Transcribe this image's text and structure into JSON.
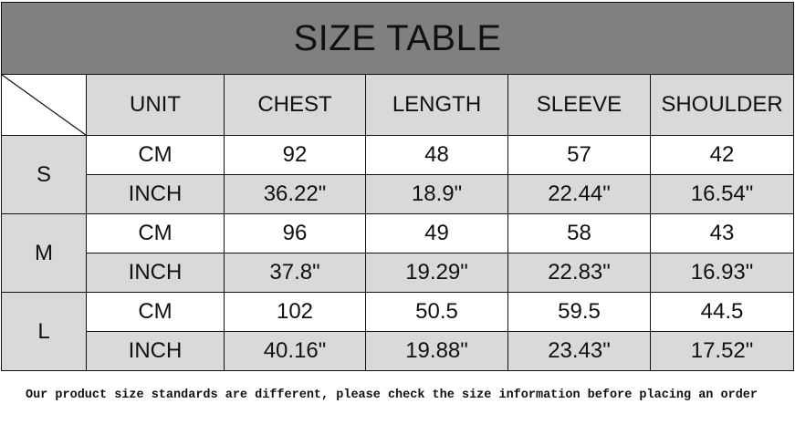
{
  "title": "SIZE TABLE",
  "headers": [
    "UNIT",
    "CHEST",
    "LENGTH",
    "SLEEVE",
    "SHOULDER"
  ],
  "sizes": [
    {
      "size": "S",
      "rows": [
        {
          "unit": "CM",
          "values": [
            "92",
            "48",
            "57",
            "42"
          ]
        },
        {
          "unit": "INCH",
          "values": [
            "36.22\"",
            "18.9\"",
            "22.44\"",
            "16.54\""
          ]
        }
      ]
    },
    {
      "size": "M",
      "rows": [
        {
          "unit": "CM",
          "values": [
            "96",
            "49",
            "58",
            "43"
          ]
        },
        {
          "unit": "INCH",
          "values": [
            "37.8\"",
            "19.29\"",
            "22.83\"",
            "16.93\""
          ]
        }
      ]
    },
    {
      "size": "L",
      "rows": [
        {
          "unit": "CM",
          "values": [
            "102",
            "50.5",
            "59.5",
            "44.5"
          ]
        },
        {
          "unit": "INCH",
          "values": [
            "40.16\"",
            "19.88\"",
            "23.43\"",
            "17.52\""
          ]
        }
      ]
    }
  ],
  "note": "Our product size standards are different, please check the size information before placing an order",
  "colors": {
    "title_bg": "#808080",
    "shaded": "#d9d9d9"
  }
}
